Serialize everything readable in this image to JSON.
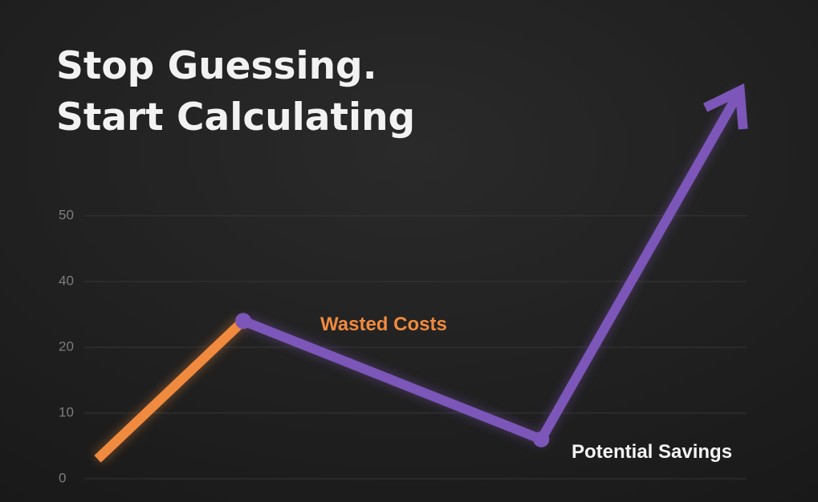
{
  "chart_data": {
    "type": "line",
    "title": [
      "Stop Guessing.",
      "Start Calculating"
    ],
    "x": [
      0.2,
      2.4,
      6.9,
      9.9
    ],
    "xlim": [
      0,
      10
    ],
    "series": [
      {
        "name": "Wasted Costs",
        "color": "#f08a3e",
        "values": [
          3,
          28,
          null,
          null
        ]
      },
      {
        "name": "Potential Savings",
        "color": "#7c56b8",
        "values": [
          null,
          28,
          6,
          69
        ]
      }
    ],
    "ylim": [
      0,
      50
    ],
    "yticks": [
      0,
      10,
      20,
      40,
      50
    ],
    "grid": true
  }
}
